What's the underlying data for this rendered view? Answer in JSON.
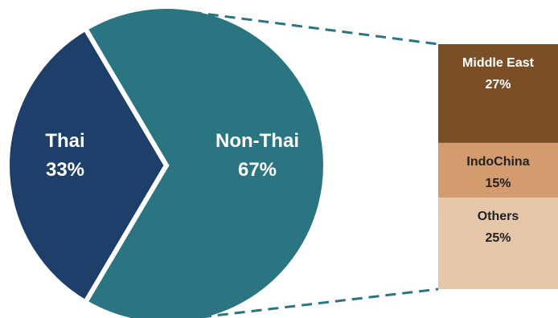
{
  "chart_data": {
    "type": "pie",
    "slices": [
      {
        "label": "Thai",
        "value": 33,
        "value_label": "33%",
        "color": "#1d3f6a"
      },
      {
        "label": "Non-Thai",
        "value": 67,
        "value_label": "67%",
        "color": "#2b7482"
      }
    ],
    "breakdown_of": "Non-Thai",
    "breakdown": [
      {
        "label": "Middle East",
        "value": 27,
        "value_label": "27%",
        "color": "#7a4f27"
      },
      {
        "label": "IndoChina",
        "value": 15,
        "value_label": "15%",
        "color": "#d39c6e"
      },
      {
        "label": "Others",
        "value": 25,
        "value_label": "25%",
        "color": "#e5c6a9"
      }
    ],
    "connector_color": "#2b7482"
  }
}
